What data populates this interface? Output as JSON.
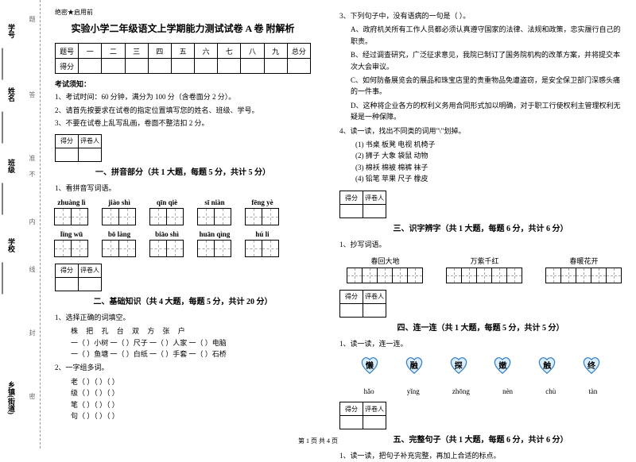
{
  "binding": {
    "labels": [
      "学号",
      "姓名",
      "班级",
      "学校",
      "乡镇(街道)"
    ],
    "hints": [
      "题",
      "答",
      "准",
      "不",
      "内",
      "线",
      "封",
      "密"
    ]
  },
  "header_small": "绝密★启用前",
  "title": "实验小学二年级语文上学期能力测试试卷 A 卷 附解析",
  "score_table": {
    "row1": [
      "题号",
      "一",
      "二",
      "三",
      "四",
      "五",
      "六",
      "七",
      "八",
      "九",
      "总分"
    ],
    "row2_label": "得分"
  },
  "notice_title": "考试须知：",
  "notices": [
    "1、考试时间：60 分钟，满分为 100 分（含卷面分 2 分）。",
    "2、请首先按要求在试卷的指定位置填写您的姓名、班级、学号。",
    "3、不要在试卷上乱写乱画，卷面不整洁扣 2 分。"
  ],
  "marker": {
    "c1": "得分",
    "c2": "评卷人"
  },
  "sec1_title": "一、拼音部分（共 1 大题，每题 5 分，共计 5 分）",
  "sec1_q": "1、看拼音写词语。",
  "pinyin_row1": [
    "zhuàng lì",
    "jiào shì",
    "qīn qiè",
    "sī niàn",
    "fēng yè"
  ],
  "pinyin_row2": [
    "lǐng wū",
    "bō làng",
    "biāo shì",
    "huān qìng",
    "hú li"
  ],
  "sec2_title": "二、基础知识（共 4 大题，每题 5 分，共计 20 分）",
  "sec2_q1": "1、选择正确的词填空。",
  "sec2_words": "株   把   孔   台   双   方   张   户",
  "sec2_lines": [
    "一（     ）小树    一（     ）尺子    一（     ）人家    一（     ）电脑",
    "一（     ）鱼塘    一（     ）白纸    一（     ）手套    一（     ）石桥"
  ],
  "sec2_q2": "2、一字组多词。",
  "sec2_q2_items": [
    "老（     ）（     ）（     ）",
    "级（     ）（     ）（     ）",
    "笔（     ）（     ）（     ）",
    "句（     ）（     ）（     ）"
  ],
  "right_q3": "3、下列句子中，没有语病的一句是（      ）。",
  "right_q3_items": [
    "A、政府机关所有工作人员都必须认真遵守国家的法律、法规和政策，忠实履行自己的职责。",
    "B、经过调查研究，广泛征求意见，我院已制订了国务院机构的改革方案，并将提交本次大会审议。",
    "C、如何防备展览会的展品和珠宝店里的贵重物品免遭盗窃，是安全保卫部门深感头痛的一件事。",
    "D、这种将企业各方的权利义务用合同形式加以明确，对于职工行使权利主管理权利无疑是一种保障。"
  ],
  "right_q4": "4、读一读，找出不同类的词用\"\\\"划掉。",
  "right_q4_rows": [
    "(1) 书桌     板凳     电视     机椅子",
    "(2) 狮子     大象     袋鼠     动物",
    "(3) 棉袄     棉被     棉裤     袜子",
    "(4) 铅笔     苹果     尺子     橡皮"
  ],
  "sec3_title": "三、识字辨字（共 1 大题，每题 6 分，共计 6 分）",
  "sec3_q": "1、抄写词语。",
  "sec3_words": [
    "春回大地",
    "万紫千红",
    "春暖花开"
  ],
  "sec4_title": "四、连一连（共 1 大题，每题 5 分，共计 5 分）",
  "sec4_q": "1、读一读，连一连。",
  "connect_chars": [
    "懒",
    "融",
    "探",
    "嫩",
    "触",
    "终"
  ],
  "connect_pinyin": [
    "hǎo",
    "yǐng",
    "zhōng",
    "nèn",
    "chù",
    "tàn"
  ],
  "sec5_title": "五、完整句子（共 1 大题，每题 6 分，共计 6 分）",
  "sec5_q": "1、读一读，把句子补充完整，再加上合适的标点。",
  "footer": "第 1 页 共 4 页",
  "heart_colors": {
    "outline": "#3b82c4",
    "fill": "#dbeeff"
  }
}
